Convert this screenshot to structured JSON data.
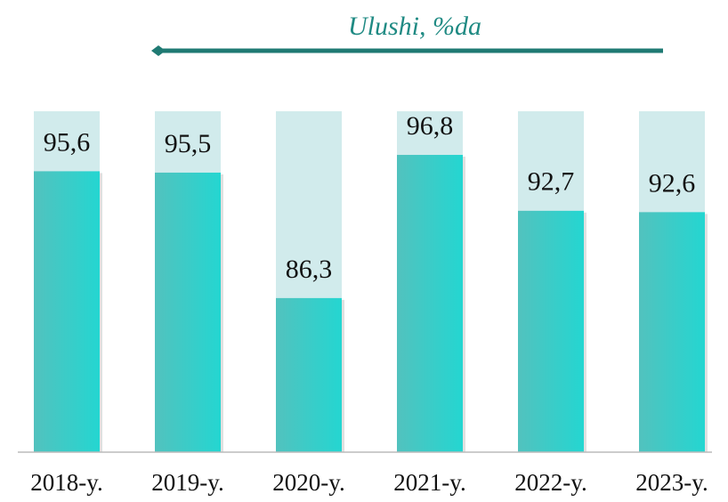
{
  "chart_data": {
    "type": "bar",
    "title": "Ulushi, %da",
    "categories": [
      "2018-y.",
      "2019-y.",
      "2020-y.",
      "2021-y.",
      "2022-y.",
      "2023-y."
    ],
    "values": [
      95.6,
      95.5,
      86.3,
      96.8,
      92.7,
      92.6
    ],
    "value_labels": [
      "95,6",
      "95,5",
      "86,3",
      "96,8",
      "92,7",
      "92,6"
    ],
    "color": "#3ccdc8",
    "ylim": [
      75,
      100
    ]
  }
}
